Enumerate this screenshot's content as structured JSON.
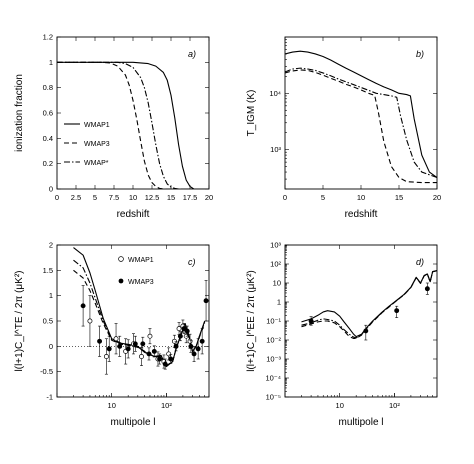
{
  "chart_data": [
    {
      "panel": "a)",
      "type": "line",
      "xlabel": "redshift",
      "ylabel": "ionization fraction",
      "xlim": [
        0,
        20
      ],
      "ylim": [
        0,
        1.2
      ],
      "xticks": [
        0,
        2.5,
        5,
        7.5,
        10,
        12.5,
        15,
        17.5,
        20
      ],
      "xtick_labels": [
        "0",
        "2.5",
        "5",
        "7.5",
        "10",
        "12.5",
        "15",
        "17.5",
        "20"
      ],
      "yticks": [
        0,
        0.2,
        0.4,
        0.6,
        0.8,
        1.0,
        1.2
      ],
      "ytick_labels": [
        "0",
        "0.2",
        "0.4",
        "0.6",
        "0.8",
        "1",
        "1.2"
      ],
      "legend_position": "left",
      "series": [
        {
          "name": "WMAP1",
          "style": "solid",
          "x": [
            0,
            8,
            10,
            11,
            12,
            13,
            14,
            14.5,
            15,
            15.5,
            16,
            16.5,
            17,
            17.5,
            18,
            20
          ],
          "y": [
            1.0,
            1.0,
            1.0,
            0.995,
            0.99,
            0.97,
            0.92,
            0.86,
            0.74,
            0.56,
            0.35,
            0.18,
            0.07,
            0.02,
            0.0,
            0.0
          ]
        },
        {
          "name": "WMAP3",
          "style": "dashed",
          "x": [
            0,
            6,
            7,
            8,
            9,
            9.5,
            10,
            10.5,
            11,
            11.5,
            12,
            12.5,
            13,
            13.5,
            14,
            20
          ],
          "y": [
            1.0,
            1.0,
            0.995,
            0.97,
            0.9,
            0.82,
            0.7,
            0.55,
            0.38,
            0.22,
            0.11,
            0.05,
            0.02,
            0.005,
            0.0,
            0.0
          ]
        },
        {
          "name": "WMAP*",
          "style": "dashdot",
          "x": [
            0,
            8,
            9,
            10,
            11,
            11.5,
            12,
            12.5,
            13,
            13.5,
            14,
            14.5,
            15,
            15.5,
            16,
            20
          ],
          "y": [
            1.0,
            1.0,
            0.99,
            0.96,
            0.88,
            0.8,
            0.68,
            0.52,
            0.35,
            0.2,
            0.1,
            0.04,
            0.015,
            0.005,
            0.0,
            0.0
          ]
        }
      ]
    },
    {
      "panel": "b)",
      "type": "line",
      "xlabel": "redshift",
      "ylabel": "T_IGM (K)",
      "xlim": [
        0,
        20
      ],
      "ylim": [
        200,
        100000
      ],
      "yscale": "log",
      "xticks": [
        0,
        5,
        10,
        15,
        20
      ],
      "xtick_labels": [
        "0",
        "5",
        "10",
        "15",
        "20"
      ],
      "yticks": [
        1000,
        10000
      ],
      "ytick_labels": [
        "10³",
        "10⁴"
      ],
      "series": [
        {
          "name": "WMAP1",
          "style": "solid",
          "x": [
            0,
            1,
            2,
            3,
            4,
            5,
            6,
            7,
            8,
            9,
            10,
            11,
            12,
            13,
            14,
            15,
            16,
            16.5,
            17,
            18,
            19,
            20
          ],
          "y": [
            50000,
            54000,
            56000,
            54000,
            50000,
            45000,
            39000,
            33000,
            28000,
            24000,
            20500,
            17500,
            15000,
            13000,
            11500,
            10000,
            9500,
            9000,
            3500,
            800,
            400,
            320
          ]
        },
        {
          "name": "WMAP3",
          "style": "dashed",
          "x": [
            0,
            1,
            2,
            3,
            4,
            5,
            6,
            7,
            8,
            9,
            10,
            11,
            11.8,
            12.3,
            13,
            14,
            15,
            16,
            18,
            20
          ],
          "y": [
            23000,
            25000,
            26000,
            25500,
            23500,
            21000,
            18500,
            16500,
            14500,
            13000,
            11500,
            10000,
            9200,
            4500,
            1400,
            500,
            320,
            270,
            260,
            260
          ]
        },
        {
          "name": "WMAP*",
          "style": "dashdot",
          "x": [
            0,
            1,
            2,
            3,
            4,
            5,
            6,
            7,
            8,
            9,
            10,
            11,
            12,
            13,
            14,
            14.7,
            15.2,
            16,
            17,
            18,
            20
          ],
          "y": [
            24000,
            27000,
            28000,
            27000,
            25500,
            23000,
            20500,
            18000,
            16000,
            14300,
            12700,
            11300,
            10000,
            9500,
            9000,
            8500,
            4000,
            1500,
            600,
            400,
            320
          ]
        }
      ]
    },
    {
      "panel": "c)",
      "type": "line",
      "xlabel": "multipole l",
      "ylabel": "l(l+1)C_l^TE / 2π (μK²)",
      "xscale": "log",
      "xlim": [
        1,
        600
      ],
      "ylim": [
        -1,
        2
      ],
      "xticks": [
        10,
        100
      ],
      "xtick_labels": [
        "10",
        "10²"
      ],
      "yticks": [
        -1,
        -0.5,
        0,
        0.5,
        1,
        1.5,
        2
      ],
      "ytick_labels": [
        "-1",
        "-0.5",
        "0",
        "0.5",
        "1",
        "1.5",
        "2"
      ],
      "legend_position": "top-center",
      "series": [
        {
          "name": "",
          "style": "solid",
          "x": [
            2,
            3,
            4,
            5,
            7,
            10,
            15,
            20,
            30,
            40,
            60,
            80,
            100,
            130,
            150,
            180,
            220,
            260,
            300,
            350,
            400,
            500
          ],
          "y": [
            1.95,
            1.8,
            1.45,
            1.1,
            0.55,
            0.15,
            0.06,
            0.04,
            0.0,
            -0.12,
            -0.2,
            -0.18,
            -0.4,
            -0.3,
            -0.05,
            0.2,
            0.45,
            0.2,
            -0.1,
            0.0,
            0.2,
            0.5
          ]
        },
        {
          "name": "",
          "style": "dashed",
          "x": [
            2,
            3,
            4,
            5,
            7,
            10,
            15,
            20,
            30,
            40,
            60,
            80,
            100,
            130,
            150,
            180,
            220,
            260,
            300,
            350,
            400,
            500
          ],
          "y": [
            1.5,
            1.35,
            1.1,
            0.85,
            0.45,
            0.12,
            0.04,
            0.02,
            -0.02,
            -0.1,
            -0.2,
            -0.2,
            -0.38,
            -0.3,
            -0.05,
            0.2,
            0.42,
            0.18,
            -0.1,
            0.0,
            0.18,
            0.45
          ]
        },
        {
          "name": "",
          "style": "dashdot",
          "x": [
            2,
            3,
            4,
            5,
            7,
            10,
            15,
            20,
            30,
            40,
            60,
            80,
            100,
            130,
            150,
            180,
            220,
            260,
            300,
            350,
            400,
            500
          ],
          "y": [
            1.7,
            1.55,
            1.25,
            0.95,
            0.5,
            0.13,
            0.05,
            0.03,
            -0.01,
            -0.11,
            -0.2,
            -0.19,
            -0.39,
            -0.3,
            -0.05,
            0.2,
            0.44,
            0.19,
            -0.1,
            0.0,
            0.19,
            0.48
          ]
        },
        {
          "name": "WMAP1",
          "style": "open-markers",
          "x": [
            4,
            8,
            12,
            18,
            25,
            35,
            50,
            70,
            90,
            110,
            140,
            170,
            200,
            230,
            270
          ],
          "y": [
            0.5,
            -0.2,
            0.15,
            -0.1,
            0.05,
            -0.2,
            0.2,
            -0.25,
            -0.3,
            -0.15,
            0.1,
            0.35,
            0.4,
            0.2,
            0.1
          ],
          "err": [
            0.5,
            0.35,
            0.3,
            0.25,
            0.2,
            0.18,
            0.15,
            0.14,
            0.13,
            0.12,
            0.12,
            0.12,
            0.12,
            0.13,
            0.14
          ]
        },
        {
          "name": "WMAP3",
          "style": "filled-markers",
          "x": [
            3,
            6,
            9,
            14,
            20,
            27,
            37,
            48,
            60,
            75,
            95,
            120,
            150,
            180,
            210,
            240,
            280,
            320,
            380,
            450,
            530
          ],
          "y": [
            0.8,
            0.1,
            -0.05,
            0.0,
            -0.05,
            0.05,
            0.05,
            -0.15,
            -0.1,
            -0.25,
            -0.35,
            -0.25,
            0.0,
            0.2,
            0.35,
            0.3,
            0.0,
            -0.15,
            -0.05,
            0.1,
            0.9
          ],
          "err": [
            0.4,
            0.3,
            0.25,
            0.2,
            0.18,
            0.15,
            0.13,
            0.12,
            0.11,
            0.1,
            0.1,
            0.09,
            0.09,
            0.09,
            0.1,
            0.1,
            0.12,
            0.15,
            0.2,
            0.25,
            0.4
          ]
        }
      ]
    },
    {
      "panel": "d)",
      "type": "line",
      "xlabel": "multipole l",
      "ylabel": "l(l+1)C_l^EE / 2π (μK²)",
      "xscale": "log",
      "yscale": "log",
      "xlim": [
        1,
        600
      ],
      "ylim": [
        1e-05,
        1000
      ],
      "xticks": [
        10,
        100
      ],
      "xtick_labels": [
        "10",
        "10²"
      ],
      "yticks": [
        1e-05,
        0.0001,
        0.001,
        0.01,
        0.1,
        1,
        10,
        100,
        1000
      ],
      "ytick_labels": [
        "10⁻⁵",
        "10⁻⁴",
        "10⁻³",
        "10⁻²",
        "10⁻¹",
        "1",
        "10",
        "10²",
        "10³"
      ],
      "series": [
        {
          "name": "",
          "style": "solid",
          "x": [
            2,
            3,
            4,
            5,
            6,
            8,
            10,
            12,
            15,
            18,
            20,
            25,
            30,
            40,
            60,
            80,
            100,
            150,
            200,
            250,
            300,
            350,
            400,
            450,
            500,
            600
          ],
          "y": [
            0.09,
            0.13,
            0.2,
            0.3,
            0.35,
            0.3,
            0.18,
            0.09,
            0.04,
            0.02,
            0.015,
            0.02,
            0.04,
            0.1,
            0.3,
            0.6,
            1.0,
            2.5,
            6.0,
            20,
            10,
            25,
            30,
            12,
            40,
            45
          ]
        },
        {
          "name": "",
          "style": "dashed",
          "x": [
            2,
            3,
            4,
            5,
            6,
            8,
            10,
            12,
            15,
            18,
            20,
            25,
            30,
            40,
            60,
            80,
            100,
            150,
            200,
            250,
            300,
            350,
            400,
            450,
            500,
            600
          ],
          "y": [
            0.05,
            0.07,
            0.09,
            0.1,
            0.1,
            0.08,
            0.05,
            0.03,
            0.015,
            0.012,
            0.012,
            0.018,
            0.035,
            0.09,
            0.28,
            0.55,
            0.95,
            2.4,
            5.8,
            19,
            9.5,
            24,
            29,
            11.5,
            39,
            44
          ]
        },
        {
          "name": "",
          "style": "dashdot",
          "x": [
            2,
            3,
            4,
            5,
            6,
            8,
            10,
            12,
            15,
            18,
            20,
            25,
            30,
            40,
            60,
            80,
            100,
            150,
            200,
            250,
            300,
            350,
            400,
            450,
            500,
            600
          ],
          "y": [
            0.06,
            0.08,
            0.11,
            0.13,
            0.12,
            0.1,
            0.06,
            0.035,
            0.02,
            0.014,
            0.013,
            0.019,
            0.037,
            0.095,
            0.29,
            0.57,
            0.97,
            2.45,
            5.9,
            19.5,
            9.8,
            24.5,
            29.5,
            11.8,
            39.5,
            44.5
          ]
        },
        {
          "name": "WMAP3",
          "style": "filled-markers",
          "x": [
            3,
            30,
            110,
            400
          ],
          "y": [
            0.1,
            0.03,
            0.35,
            5.0
          ],
          "err_low": [
            0.04,
            0.02,
            0.2,
            2.5
          ],
          "err_high": [
            0.07,
            0.03,
            0.25,
            5.0
          ]
        }
      ]
    }
  ]
}
